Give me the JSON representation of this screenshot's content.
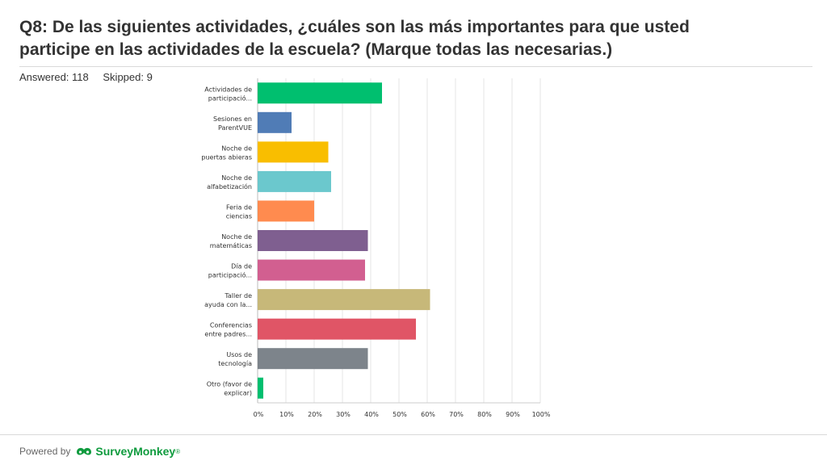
{
  "header": {
    "title_line1": "Q8: De las siguientes actividades, ¿cuáles son las más importantes para que usted",
    "title_line2": "participe en las actividades de la escuela? (Marque todas las necesarias.)",
    "answered": "Answered: 118",
    "skipped": "Skipped: 9"
  },
  "footer": {
    "powered_by": "Powered by",
    "brand": "SurveyMonkey",
    "brand_mark": "®"
  },
  "chart_data": {
    "type": "bar",
    "orientation": "horizontal",
    "categories": [
      [
        "Actividades de",
        "participació..."
      ],
      [
        "Sesiones en",
        "ParentVUE"
      ],
      [
        "Noche de",
        "puertas abieras"
      ],
      [
        "Noche de",
        "alfabetización"
      ],
      [
        "Feria de",
        "ciencias"
      ],
      [
        "Noche de",
        "matemáticas"
      ],
      [
        "Día de",
        "participació..."
      ],
      [
        "Taller de",
        "ayuda con la..."
      ],
      [
        "Conferencias",
        "entre padres..."
      ],
      [
        "Usos de",
        "tecnología"
      ],
      [
        "Otro (favor de",
        "explicar)"
      ]
    ],
    "values": [
      44,
      12,
      25,
      26,
      20,
      39,
      38,
      61,
      56,
      39,
      2
    ],
    "colors": [
      "#00bf6f",
      "#507cb6",
      "#f9be00",
      "#6bc8cd",
      "#ff8b4f",
      "#7f5f90",
      "#d25f90",
      "#c7b879",
      "#e05566",
      "#7d848b",
      "#00bf6f"
    ],
    "xlim": [
      0,
      100
    ],
    "x_ticks": [
      "0%",
      "10%",
      "20%",
      "30%",
      "40%",
      "50%",
      "60%",
      "70%",
      "80%",
      "90%",
      "100%"
    ],
    "grid": true,
    "legend": "none"
  }
}
